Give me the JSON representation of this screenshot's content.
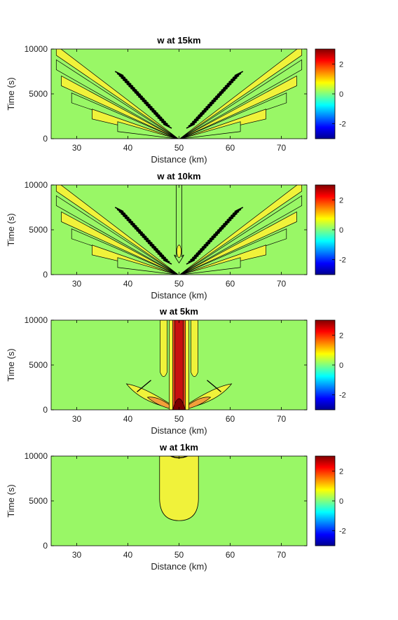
{
  "chart_data": [
    {
      "type": "heatmap",
      "title": "w at 15km",
      "xlabel": "Distance (km)",
      "ylabel": "Time (s)",
      "xlim": [
        25,
        75
      ],
      "ylim": [
        0,
        10000
      ],
      "xticks": [
        "30",
        "40",
        "50",
        "60",
        "70"
      ],
      "yticks": [
        "0",
        "5000",
        "10000"
      ],
      "colorbar": {
        "range": [
          -3,
          3
        ],
        "ticks": [
          "2",
          "0",
          "-2"
        ],
        "colormap": "jet"
      },
      "pattern": "V-shaped wave fans radiating from x=50 km at t=0 toward both edges; many tight contours near x=40-47 and 53-60 km",
      "source_x": 50
    },
    {
      "type": "heatmap",
      "title": "w at 10km",
      "xlabel": "Distance (km)",
      "ylabel": "Time (s)",
      "xlim": [
        25,
        75
      ],
      "ylim": [
        0,
        10000
      ],
      "xticks": [
        "30",
        "40",
        "50",
        "60",
        "70"
      ],
      "yticks": [
        "0",
        "5000",
        "10000"
      ],
      "colorbar": {
        "range": [
          -3,
          3
        ],
        "ticks": [
          "2",
          "0",
          "-2"
        ],
        "colormap": "jet"
      },
      "pattern": "V-shaped fans from x=50 km plus a narrow vertical column at x=50 km with a small closed contour near t=2600 s",
      "source_x": 50
    },
    {
      "type": "heatmap",
      "title": "w at 5km",
      "xlabel": "Distance (km)",
      "ylabel": "Time (s)",
      "xlim": [
        25,
        75
      ],
      "ylim": [
        0,
        10000
      ],
      "xticks": [
        "30",
        "40",
        "50",
        "60",
        "70"
      ],
      "yticks": [
        "0",
        "5000",
        "10000"
      ],
      "colorbar": {
        "range": [
          -3,
          3
        ],
        "ticks": [
          "2",
          "0",
          "-2"
        ],
        "colormap": "jet"
      },
      "pattern": "Strong positive vertical column at x=50 km (peak near 3) with flanking yellow columns and low-angle lobes near t<3000 s",
      "source_x": 50
    },
    {
      "type": "heatmap",
      "title": "w at 1km",
      "xlabel": "Distance (km)",
      "ylabel": "Time (s)",
      "xlim": [
        25,
        75
      ],
      "ylim": [
        0,
        10000
      ],
      "xticks": [
        "30",
        "40",
        "50",
        "60",
        "70"
      ],
      "yticks": [
        "0",
        "5000",
        "10000"
      ],
      "colorbar": {
        "range": [
          -3,
          3
        ],
        "ticks": [
          "2",
          "0",
          "-2"
        ],
        "colormap": "jet"
      },
      "pattern": "Single weak positive dome centred at x=50 km spanning roughly 46-54 km, from t about 2800 s to 10000 s",
      "source_x": 50
    }
  ],
  "colors": {
    "background_field": "#99f766",
    "weak_positive": "#f0f23a",
    "strong_positive": "#c81010",
    "contour": "#000000"
  }
}
